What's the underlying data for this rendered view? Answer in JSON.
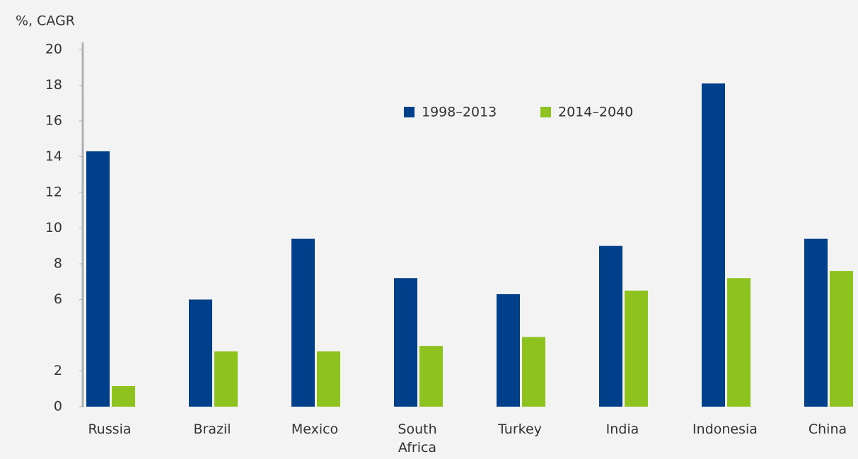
{
  "chart_data": {
    "type": "bar",
    "y_axis_label": "%, CAGR",
    "categories": [
      "Russia",
      "Brazil",
      "Mexico",
      "South Africa",
      "Turkey",
      "India",
      "Indonesia",
      "China"
    ],
    "series": [
      {
        "name": "1998–2013",
        "color": "#003f8a",
        "values": [
          14.3,
          6.0,
          9.4,
          7.2,
          6.3,
          9.0,
          18.1,
          9.4
        ]
      },
      {
        "name": "2014–2040",
        "color": "#8dc21f",
        "values": [
          1.15,
          3.1,
          3.1,
          3.4,
          3.9,
          6.5,
          7.2,
          7.6
        ]
      }
    ],
    "ylim": [
      0,
      20
    ],
    "yticks": [
      0,
      2,
      6,
      8,
      10,
      12,
      14,
      16,
      18,
      20
    ],
    "grid": false
  }
}
